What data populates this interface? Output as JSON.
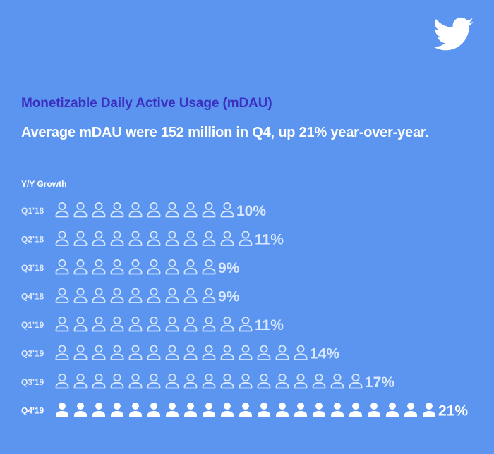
{
  "colors": {
    "background": "#5b95ef",
    "title": "#3a2fbf",
    "icon_outline": "#d9e8ff",
    "icon_highlight": "#ffffff",
    "text": "#ffffff",
    "text_muted": "#dfeaff"
  },
  "logo_icon": "twitter-bird-icon",
  "person_icon": "person-icon",
  "header": {
    "title": "Monetizable Daily Active Usage (mDAU)",
    "subtitle": "Average mDAU were 152 million in Q4, up 21% year-over-year.",
    "growth_label": "Y/Y Growth"
  },
  "chart_data": {
    "type": "bar",
    "encoding": "pictograph",
    "title": "Monetizable Daily Active Usage (mDAU)",
    "subtitle": "Average mDAU were 152 million in Q4, up 21% year-over-year.",
    "ylabel": "Y/Y Growth",
    "categories": [
      "Q1'18",
      "Q2'18",
      "Q3'18",
      "Q4'18",
      "Q1'19",
      "Q2'19",
      "Q3'19",
      "Q4'19"
    ],
    "values": [
      10,
      11,
      9,
      9,
      11,
      14,
      17,
      21
    ],
    "value_labels": [
      "10%",
      "11%",
      "9%",
      "9%",
      "11%",
      "14%",
      "17%",
      "21%"
    ],
    "unit": "% per icon",
    "highlight_index": 7
  }
}
